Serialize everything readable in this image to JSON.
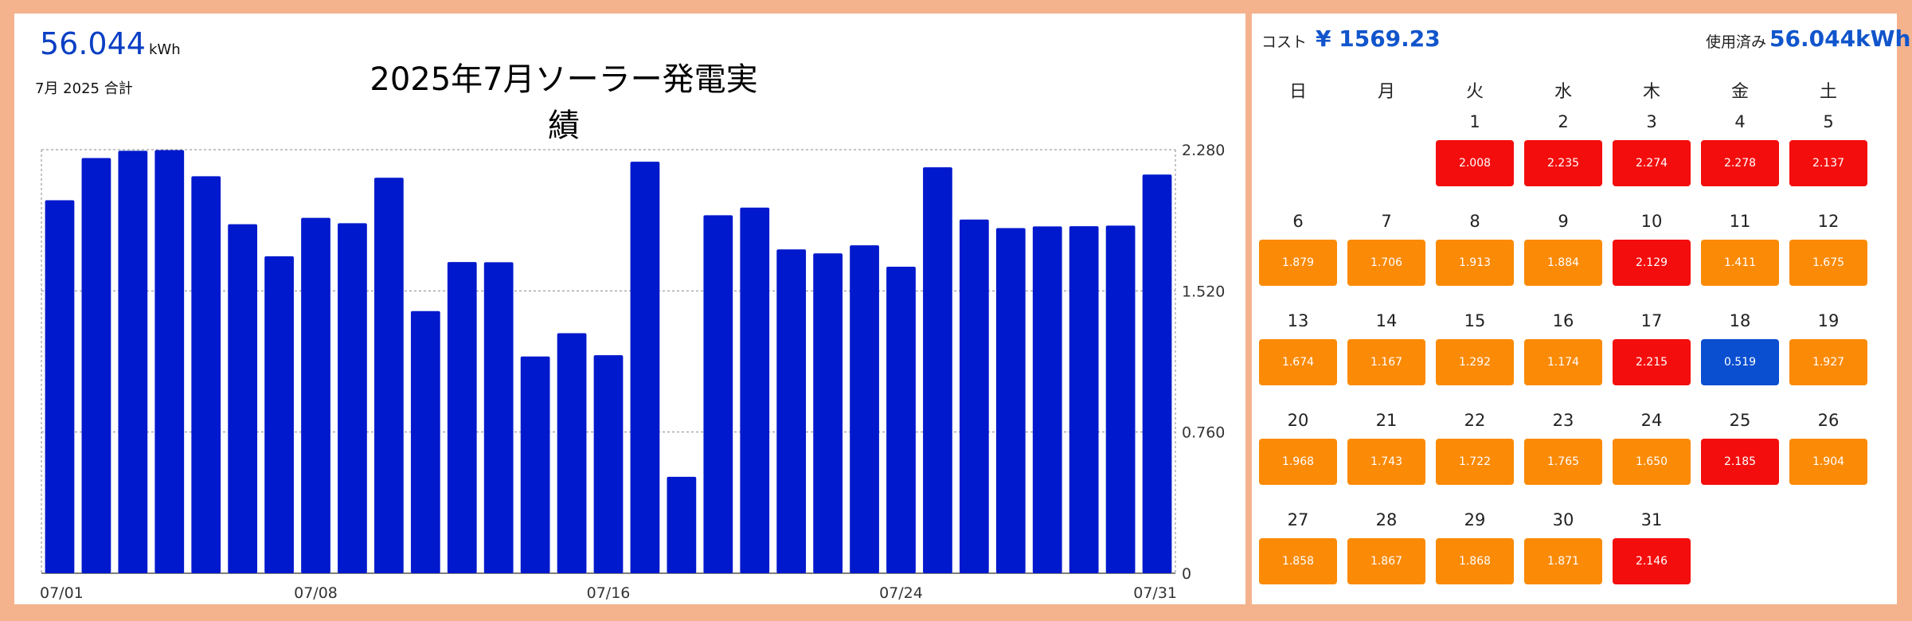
{
  "summary": {
    "total_value": "56.044",
    "total_unit": "kWh",
    "total_label": "7月 2025 合計"
  },
  "chart_data": {
    "type": "bar",
    "title": "2025年7月ソーラー発電実績",
    "categories": [
      "07/01",
      "07/02",
      "07/03",
      "07/04",
      "07/05",
      "07/06",
      "07/07",
      "07/08",
      "07/09",
      "07/10",
      "07/11",
      "07/12",
      "07/13",
      "07/14",
      "07/15",
      "07/16",
      "07/17",
      "07/18",
      "07/19",
      "07/20",
      "07/21",
      "07/22",
      "07/23",
      "07/24",
      "07/25",
      "07/26",
      "07/27",
      "07/28",
      "07/29",
      "07/30",
      "07/31"
    ],
    "values": [
      2.008,
      2.235,
      2.274,
      2.278,
      2.137,
      1.879,
      1.706,
      1.913,
      1.884,
      2.129,
      1.411,
      1.675,
      1.674,
      1.167,
      1.292,
      1.174,
      2.215,
      0.519,
      1.927,
      1.968,
      1.743,
      1.722,
      1.765,
      1.65,
      2.185,
      1.904,
      1.858,
      1.867,
      1.868,
      1.871,
      2.146
    ],
    "ylim": [
      0,
      2.28
    ],
    "y_ticks": [
      "0",
      "0.760",
      "1.520",
      "2.280"
    ],
    "x_tick_labels": [
      "07/01",
      "07/08",
      "07/16",
      "07/24",
      "07/31"
    ],
    "y_axis_side": "right",
    "grid": true,
    "bar_color": "#0019cc"
  },
  "calendar": {
    "cost_label": "コスト",
    "cost_value": "¥ 1569.23",
    "used_label": "使用済み",
    "used_value": "56.044kWh",
    "weekdays": [
      "日",
      "月",
      "火",
      "水",
      "木",
      "金",
      "土"
    ],
    "first_weekday_index": 2,
    "days": [
      {
        "day": "1",
        "value": "2.008",
        "level": "high"
      },
      {
        "day": "2",
        "value": "2.235",
        "level": "high"
      },
      {
        "day": "3",
        "value": "2.274",
        "level": "high"
      },
      {
        "day": "4",
        "value": "2.278",
        "level": "high"
      },
      {
        "day": "5",
        "value": "2.137",
        "level": "high"
      },
      {
        "day": "6",
        "value": "1.879",
        "level": "mid"
      },
      {
        "day": "7",
        "value": "1.706",
        "level": "mid"
      },
      {
        "day": "8",
        "value": "1.913",
        "level": "mid"
      },
      {
        "day": "9",
        "value": "1.884",
        "level": "mid"
      },
      {
        "day": "10",
        "value": "2.129",
        "level": "high"
      },
      {
        "day": "11",
        "value": "1.411",
        "level": "mid"
      },
      {
        "day": "12",
        "value": "1.675",
        "level": "mid"
      },
      {
        "day": "13",
        "value": "1.674",
        "level": "mid"
      },
      {
        "day": "14",
        "value": "1.167",
        "level": "mid"
      },
      {
        "day": "15",
        "value": "1.292",
        "level": "mid"
      },
      {
        "day": "16",
        "value": "1.174",
        "level": "mid"
      },
      {
        "day": "17",
        "value": "2.215",
        "level": "high"
      },
      {
        "day": "18",
        "value": "0.519",
        "level": "low"
      },
      {
        "day": "19",
        "value": "1.927",
        "level": "mid"
      },
      {
        "day": "20",
        "value": "1.968",
        "level": "mid"
      },
      {
        "day": "21",
        "value": "1.743",
        "level": "mid"
      },
      {
        "day": "22",
        "value": "1.722",
        "level": "mid"
      },
      {
        "day": "23",
        "value": "1.765",
        "level": "mid"
      },
      {
        "day": "24",
        "value": "1.650",
        "level": "mid"
      },
      {
        "day": "25",
        "value": "2.185",
        "level": "high"
      },
      {
        "day": "26",
        "value": "1.904",
        "level": "mid"
      },
      {
        "day": "27",
        "value": "1.858",
        "level": "mid"
      },
      {
        "day": "28",
        "value": "1.867",
        "level": "mid"
      },
      {
        "day": "29",
        "value": "1.868",
        "level": "mid"
      },
      {
        "day": "30",
        "value": "1.871",
        "level": "mid"
      },
      {
        "day": "31",
        "value": "2.146",
        "level": "high"
      }
    ],
    "level_colors": {
      "high": "#f40d0d",
      "mid": "#fb8a06",
      "low": "#0a4fd0"
    }
  }
}
